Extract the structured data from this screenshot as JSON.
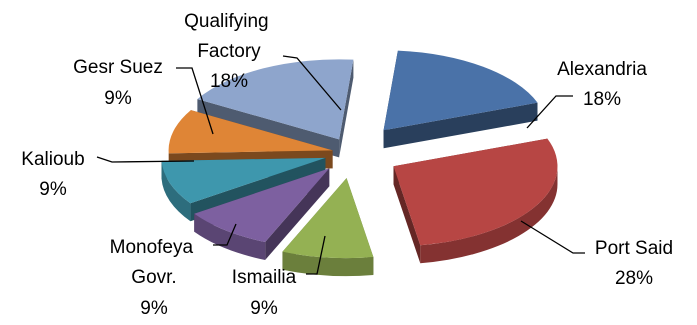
{
  "chart_data": {
    "type": "pie",
    "style": "3d-exploded",
    "title": "",
    "slices": [
      {
        "name": "Alexandria",
        "label": "18%",
        "value": 18,
        "color": "#4a72a8"
      },
      {
        "name": "Port Said",
        "label": "28%",
        "value": 28,
        "color": "#b74644"
      },
      {
        "name": "Ismailia",
        "label": "9%",
        "value": 9,
        "color": "#94b153"
      },
      {
        "name": "Monofeya Govr.",
        "label": "9%",
        "value": 9,
        "color": "#7d60a0"
      },
      {
        "name": "Kalioub",
        "label": "9%",
        "value": 9,
        "color": "#3e97ad"
      },
      {
        "name": "Gesr Suez",
        "label": "9%",
        "value": 9,
        "color": "#df8536"
      },
      {
        "name": "Qualifying Factory",
        "label": "18%",
        "value": 18,
        "color": "#8ea5cc"
      }
    ]
  }
}
